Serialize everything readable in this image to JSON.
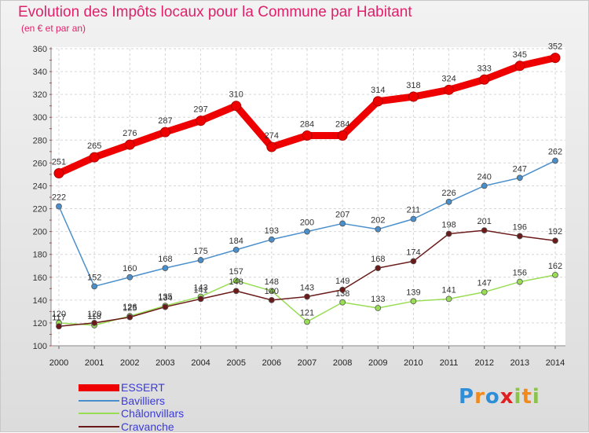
{
  "chart_data": {
    "type": "line",
    "title": "Evolution des Impôts locaux pour la Commune par Habitant",
    "subtitle": "(en € et par an)",
    "xlabel": "",
    "ylabel": "",
    "x": [
      "2000",
      "2001",
      "2002",
      "2003",
      "2004",
      "2005",
      "2006",
      "2007",
      "2008",
      "2009",
      "2010",
      "2011",
      "2012",
      "2013",
      "2014"
    ],
    "ylim": [
      100,
      360
    ],
    "yticks": [
      100,
      120,
      140,
      160,
      180,
      200,
      220,
      240,
      260,
      280,
      300,
      320,
      340,
      360
    ],
    "grid": true,
    "legend_position": "bottom-left",
    "series": [
      {
        "name": "ESSERT",
        "color": "#ee0000",
        "values": [
          251,
          265,
          276,
          287,
          297,
          310,
          274,
          284,
          284,
          314,
          318,
          324,
          333,
          345,
          352
        ]
      },
      {
        "name": "Bavilliers",
        "color": "#4a8fcc",
        "values": [
          222,
          152,
          160,
          168,
          175,
          184,
          193,
          200,
          207,
          202,
          211,
          226,
          240,
          247,
          262
        ]
      },
      {
        "name": "Châlonvillars",
        "color": "#99dd55",
        "values": [
          120,
          118,
          126,
          135,
          143,
          157,
          148,
          121,
          138,
          133,
          139,
          141,
          147,
          156,
          162
        ]
      },
      {
        "name": "Cravanche",
        "color": "#6b1a1a",
        "values": [
          117,
          120,
          125,
          134,
          141,
          148,
          140,
          143,
          149,
          168,
          174,
          198,
          201,
          196,
          192
        ]
      }
    ]
  },
  "logo": {
    "text": "Proxiti",
    "letters": [
      {
        "ch": "P",
        "color": "#2f8ed8"
      },
      {
        "ch": "r",
        "color": "#f08a1c"
      },
      {
        "ch": "o",
        "color": "#2f8ed8"
      },
      {
        "ch": "x",
        "color": "#e02020"
      },
      {
        "ch": "i",
        "color": "#8bc34a"
      },
      {
        "ch": "t",
        "color": "#f08a1c"
      },
      {
        "ch": "i",
        "color": "#8bc34a"
      }
    ]
  }
}
